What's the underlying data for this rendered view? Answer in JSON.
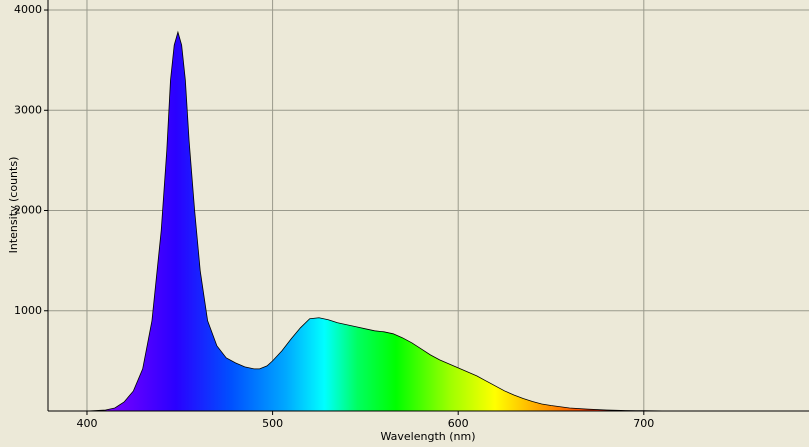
{
  "chart_data": {
    "type": "area",
    "x_label": "Wavelength (nm)",
    "y_label": "Intensity (counts)",
    "x": [
      400,
      405,
      410,
      415,
      420,
      425,
      430,
      435,
      440,
      443,
      445,
      447,
      449,
      451,
      453,
      455,
      458,
      461,
      465,
      470,
      475,
      480,
      485,
      490,
      493,
      497,
      500,
      505,
      510,
      515,
      520,
      525,
      530,
      535,
      540,
      545,
      550,
      555,
      560,
      565,
      570,
      575,
      580,
      585,
      590,
      595,
      600,
      605,
      610,
      615,
      620,
      625,
      630,
      635,
      640,
      645,
      650,
      660,
      670,
      680,
      690,
      700,
      710,
      720
    ],
    "values": [
      0,
      5,
      10,
      30,
      90,
      200,
      420,
      900,
      1800,
      2600,
      3300,
      3650,
      3780,
      3650,
      3300,
      2700,
      2000,
      1400,
      900,
      650,
      530,
      480,
      440,
      420,
      420,
      450,
      500,
      600,
      720,
      830,
      920,
      930,
      910,
      880,
      860,
      840,
      820,
      800,
      790,
      770,
      730,
      680,
      620,
      560,
      510,
      470,
      430,
      390,
      350,
      300,
      250,
      200,
      160,
      125,
      95,
      70,
      55,
      30,
      18,
      10,
      5,
      3,
      1,
      0
    ],
    "xlim": [
      379,
      789
    ],
    "ylim": [
      0,
      4100
    ],
    "xticks": [
      400,
      500,
      600,
      700
    ],
    "yticks": [
      1000,
      2000,
      3000,
      4000
    ],
    "grid": true
  }
}
